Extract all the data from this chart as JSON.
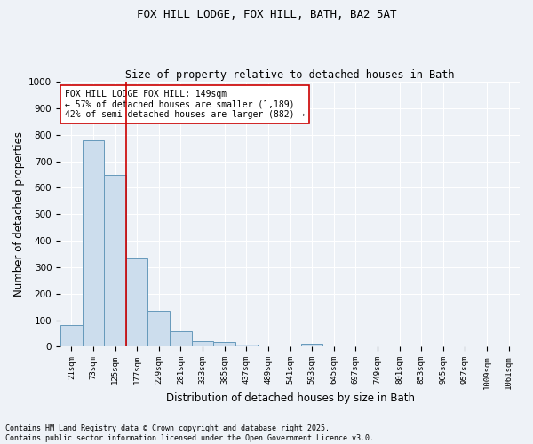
{
  "title1": "FOX HILL LODGE, FOX HILL, BATH, BA2 5AT",
  "title2": "Size of property relative to detached houses in Bath",
  "xlabel": "Distribution of detached houses by size in Bath",
  "ylabel": "Number of detached properties",
  "bar_labels": [
    "21sqm",
    "73sqm",
    "125sqm",
    "177sqm",
    "229sqm",
    "281sqm",
    "333sqm",
    "385sqm",
    "437sqm",
    "489sqm",
    "541sqm",
    "593sqm",
    "645sqm",
    "697sqm",
    "749sqm",
    "801sqm",
    "853sqm",
    "905sqm",
    "957sqm",
    "1009sqm",
    "1061sqm"
  ],
  "bar_values": [
    83,
    780,
    648,
    335,
    135,
    58,
    22,
    18,
    10,
    0,
    0,
    12,
    0,
    0,
    0,
    0,
    0,
    0,
    0,
    0,
    0
  ],
  "bar_color": "#ccdded",
  "bar_edge_color": "#6699bb",
  "red_line_color": "#cc0000",
  "annotation_text": "FOX HILL LODGE FOX HILL: 149sqm\n← 57% of detached houses are smaller (1,189)\n42% of semi-detached houses are larger (882) →",
  "annotation_box_color": "#ffffff",
  "annotation_box_edge": "#cc0000",
  "ylim": [
    0,
    1000
  ],
  "yticks": [
    0,
    100,
    200,
    300,
    400,
    500,
    600,
    700,
    800,
    900,
    1000
  ],
  "background_color": "#eef2f7",
  "grid_color": "#ffffff",
  "footnote": "Contains HM Land Registry data © Crown copyright and database right 2025.\nContains public sector information licensed under the Open Government Licence v3.0."
}
